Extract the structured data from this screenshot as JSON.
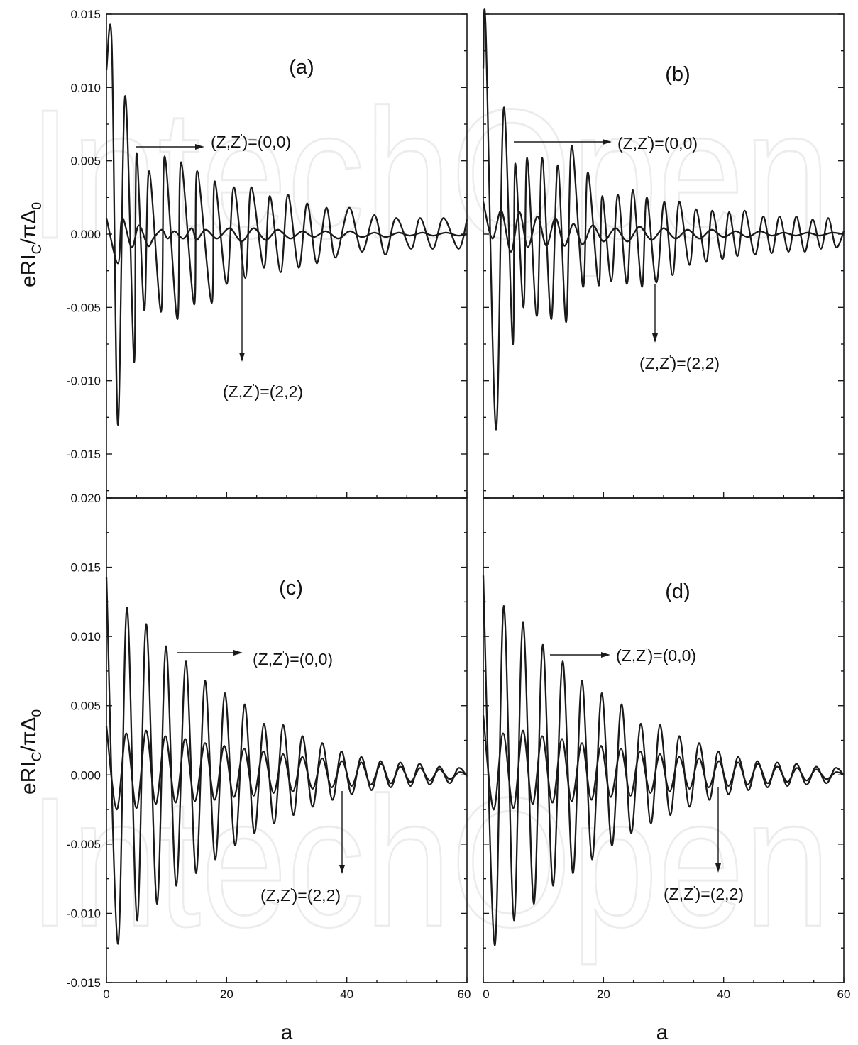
{
  "watermark": "IntechOpen",
  "colors": {
    "curve": "#1a1a1a",
    "watermark": "#ececec"
  },
  "shared": {
    "ylabel_main": "eRI",
    "ylabel_sub_c": "C",
    "ylabel_mid": "/πΔ",
    "ylabel_sub_0": "0",
    "xlabel": "a"
  },
  "chart_data": [
    {
      "type": "line",
      "panel": "(a)",
      "xlim": [
        0,
        60
      ],
      "ylim": [
        -0.018,
        0.015
      ],
      "ytick_labels": [
        "0.015",
        "0.010",
        "0.005",
        "0.000",
        "-0.005",
        "-0.010",
        "-0.015"
      ],
      "xtick_labels": [],
      "series": [
        {
          "name": "(Z,Z')=(0,0)",
          "x": [
            0,
            0.9,
            1.9,
            3.1,
            4.6,
            5.0,
            6.3,
            7.1,
            9.1,
            9.7,
            11.8,
            12.4,
            14.6,
            15.1,
            17.5,
            18.0,
            20.0,
            21.2,
            23.1,
            24.1,
            26.2,
            27.2,
            29.0,
            30.2,
            32.0,
            33.4,
            35.0,
            36.6,
            38.1,
            40.4,
            42.5,
            44.6,
            46.4,
            48.2,
            50.7,
            52.2,
            54.3,
            56.1,
            58.6,
            60
          ],
          "y": [
            0.0112,
            0.0128,
            -0.013,
            0.0094,
            -0.0087,
            0.0055,
            -0.0052,
            0.0043,
            -0.0053,
            0.0053,
            -0.0058,
            0.0049,
            -0.0048,
            0.0043,
            -0.0047,
            0.0036,
            -0.0034,
            0.0032,
            -0.003,
            0.0032,
            -0.0023,
            0.0026,
            -0.0026,
            0.0027,
            -0.0023,
            0.0021,
            -0.002,
            0.0018,
            -0.0016,
            0.0018,
            -0.0012,
            0.0013,
            -0.0014,
            0.0011,
            -0.001,
            0.0011,
            -0.001,
            0.0011,
            -0.001,
            0.001
          ]
        },
        {
          "name": "(Z,Z')=(2,2)",
          "x": [
            0,
            1.9,
            2.6,
            4.2,
            5.4,
            6.9,
            7.8,
            9.2,
            10.2,
            11.3,
            12.8,
            14.2,
            15.0,
            16.5,
            18.4,
            20.5,
            22.5,
            24.5,
            26.5,
            28.5,
            30.6,
            32.6,
            34.5,
            36.5,
            38.6,
            40.5,
            42.5,
            44.6,
            46.5,
            48.6,
            50.5,
            52.6,
            54.4,
            56.5,
            58.5,
            60
          ],
          "y": [
            0.0011,
            -0.002,
            0.0011,
            -0.0009,
            0.0006,
            -0.0008,
            -0.0003,
            0.0003,
            -0.0003,
            0.0002,
            -0.0003,
            0.0004,
            -0.0004,
            0.0003,
            -0.0003,
            0.0004,
            -0.0005,
            0.0004,
            -0.0004,
            0.0003,
            -0.0003,
            0.0002,
            -0.0002,
            0.0002,
            -0.0003,
            0.0002,
            -0.0002,
            0.0001,
            -0.0002,
            0.0001,
            -0.0001,
            0.0001,
            -0.0001,
            0.0001,
            -0.0001,
            0.0
          ]
        }
      ],
      "annotations": [
        {
          "text": "(Z,Z')=(0,0)"
        },
        {
          "text": "(Z,Z')=(2,2)"
        }
      ]
    },
    {
      "type": "line",
      "panel": "(b)",
      "xlim": [
        0,
        60
      ],
      "ylim": [
        -0.018,
        0.015
      ],
      "ytick_labels": [],
      "xtick_labels": [],
      "series": [
        {
          "name": "(Z,Z')=(0,0)",
          "x": [
            0,
            0.4,
            2.1,
            3.4,
            4.9,
            5.3,
            6.7,
            7.3,
            8.9,
            9.8,
            11.3,
            12.4,
            13.8,
            14.7,
            16.6,
            17.4,
            19.2,
            19.8,
            21.3,
            22.4,
            23.9,
            24.9,
            26.4,
            27.2,
            28.8,
            30.1,
            31.5,
            32.6,
            34.3,
            35.4,
            37.1,
            38.1,
            39.8,
            40.9,
            42.3,
            43.5,
            45.2,
            46.6,
            48.0,
            49.3,
            50.8,
            52.1,
            53.5,
            54.8,
            56.2,
            57.4,
            58.7,
            60
          ],
          "y": [
            0.0113,
            0.014,
            -0.0133,
            0.0086,
            -0.0075,
            0.0048,
            -0.005,
            0.0052,
            -0.0056,
            0.0052,
            -0.0058,
            0.0047,
            -0.006,
            0.006,
            -0.0036,
            0.0042,
            -0.0035,
            0.0026,
            -0.0032,
            0.0027,
            -0.0034,
            0.003,
            -0.0036,
            0.0025,
            -0.0033,
            0.0022,
            -0.0028,
            0.0022,
            -0.0021,
            0.0017,
            -0.0019,
            0.0016,
            -0.0017,
            0.0015,
            -0.0015,
            0.0016,
            -0.0014,
            0.0012,
            -0.0013,
            0.0012,
            -0.0012,
            0.0012,
            -0.0012,
            0.001,
            -0.001,
            0.0011,
            -0.0009,
            0.0002
          ]
        },
        {
          "name": "(Z,Z')=(2,2)",
          "x": [
            0,
            1.5,
            3.0,
            4.6,
            6.0,
            7.4,
            9.0,
            10.5,
            12.0,
            13.5,
            15.0,
            16.5,
            18.2,
            20.0,
            22.0,
            24.0,
            26.0,
            28.0,
            30.0,
            32.0,
            34.0,
            36.0,
            38.0,
            40.0,
            42.0,
            44.0,
            46.0,
            48.0,
            50.0,
            52.0,
            54.0,
            56.0,
            58.0,
            60
          ],
          "y": [
            0.0022,
            -0.0003,
            0.0016,
            -0.0012,
            0.0015,
            -0.0009,
            0.0012,
            -0.0008,
            0.0011,
            -0.0008,
            0.0007,
            -0.0007,
            0.0006,
            -0.0005,
            0.0004,
            -0.0005,
            0.0005,
            -0.0004,
            0.0004,
            -0.0003,
            0.0003,
            -0.0003,
            0.0003,
            -0.0002,
            0.0002,
            -0.0002,
            0.0002,
            -0.0001,
            0.0001,
            -0.0001,
            0.0001,
            -0.0001,
            0.0001,
            0.0
          ]
        }
      ],
      "annotations": [
        {
          "text": "(Z,Z')=(0,0)"
        },
        {
          "text": "(Z,Z')=(2,2)"
        }
      ]
    },
    {
      "type": "line",
      "panel": "(c)",
      "xlim": [
        0,
        60
      ],
      "ylim": [
        -0.015,
        0.02
      ],
      "ytick_labels": [
        "0.020",
        "0.015",
        "0.010",
        "0.005",
        "0.000",
        "-0.005",
        "-0.010",
        "-0.015"
      ],
      "xtick_labels": [
        "0",
        "20",
        "40",
        "60"
      ],
      "series": [
        {
          "name": "(Z,Z')=(0,0)",
          "x": [
            0,
            1.9,
            3.4,
            5.1,
            6.6,
            8.4,
            9.9,
            11.6,
            13.2,
            14.9,
            16.4,
            18.1,
            19.7,
            21.4,
            23.0,
            24.6,
            26.2,
            27.9,
            29.4,
            31.1,
            32.6,
            34.3,
            35.9,
            37.6,
            39.1,
            40.8,
            42.4,
            44.1,
            45.6,
            47.3,
            48.9,
            50.6,
            52.1,
            53.8,
            55.4,
            57.1,
            58.6,
            60
          ],
          "y": [
            0.0143,
            -0.0122,
            0.0121,
            -0.0105,
            0.0109,
            -0.0093,
            0.0093,
            -0.008,
            0.0082,
            -0.0071,
            0.0068,
            -0.0061,
            0.0059,
            -0.0051,
            0.0051,
            -0.0042,
            0.0037,
            -0.0035,
            0.0036,
            -0.0029,
            0.0028,
            -0.0023,
            0.0023,
            -0.0018,
            0.0017,
            -0.0014,
            0.0013,
            -0.0011,
            0.001,
            -0.0009,
            0.0009,
            -0.0008,
            0.0008,
            -0.0007,
            0.0006,
            -0.0006,
            0.0005,
            -0.0001
          ]
        },
        {
          "name": "(Z,Z')=(2,2)",
          "x": [
            0,
            1.7,
            3.3,
            5.0,
            6.6,
            8.2,
            9.8,
            11.5,
            13.1,
            14.7,
            16.4,
            18.0,
            19.6,
            21.2,
            22.9,
            24.5,
            26.1,
            27.8,
            29.4,
            31.0,
            32.6,
            34.3,
            35.9,
            37.5,
            39.2,
            40.8,
            42.4,
            44.0,
            45.7,
            47.3,
            48.9,
            50.6,
            52.2,
            53.8,
            55.4,
            57.1,
            58.7,
            60
          ],
          "y": [
            0.0035,
            -0.0025,
            0.003,
            -0.0024,
            0.0032,
            -0.0021,
            0.0028,
            -0.002,
            0.0026,
            -0.0019,
            0.0023,
            -0.0018,
            0.0021,
            -0.0016,
            0.0019,
            -0.0015,
            0.0017,
            -0.0013,
            0.0015,
            -0.0012,
            0.0013,
            -0.001,
            0.0012,
            -0.0009,
            0.001,
            -0.0008,
            0.0009,
            -0.0007,
            0.0008,
            -0.0006,
            0.0006,
            -0.0005,
            0.0005,
            -0.0004,
            0.0004,
            -0.0003,
            0.0002,
            0.0
          ]
        }
      ],
      "annotations": [
        {
          "text": "(Z,Z')=(0,0)"
        },
        {
          "text": "(Z,Z')=(2,2)"
        }
      ]
    },
    {
      "type": "line",
      "panel": "(d)",
      "xlim": [
        0,
        60
      ],
      "ylim": [
        -0.015,
        0.02
      ],
      "ytick_labels": [],
      "xtick_labels": [
        "0",
        "20",
        "40",
        "60"
      ],
      "series": [
        {
          "name": "(Z,Z')=(0,0)",
          "x": [
            0,
            1.9,
            3.4,
            5.1,
            6.6,
            8.4,
            9.9,
            11.6,
            13.2,
            14.9,
            16.4,
            18.1,
            19.7,
            21.4,
            23.0,
            24.6,
            26.2,
            27.9,
            29.4,
            31.1,
            32.6,
            34.3,
            35.9,
            37.6,
            39.1,
            40.8,
            42.4,
            44.1,
            45.6,
            47.3,
            48.9,
            50.6,
            52.1,
            53.8,
            55.4,
            57.1,
            58.6,
            60
          ],
          "y": [
            0.0144,
            -0.0123,
            0.0122,
            -0.0105,
            0.011,
            -0.0093,
            0.0094,
            -0.008,
            0.0082,
            -0.0071,
            0.0068,
            -0.0061,
            0.0059,
            -0.0051,
            0.0051,
            -0.0042,
            0.0037,
            -0.0035,
            0.0036,
            -0.0029,
            0.0028,
            -0.0023,
            0.0023,
            -0.0018,
            0.0017,
            -0.0014,
            0.0013,
            -0.0011,
            0.001,
            -0.0009,
            0.0009,
            -0.0008,
            0.0008,
            -0.0007,
            0.0006,
            -0.0006,
            0.0005,
            0.0
          ]
        },
        {
          "name": "(Z,Z')=(2,2)",
          "x": [
            0,
            1.7,
            3.3,
            5.0,
            6.6,
            8.2,
            9.8,
            11.5,
            13.1,
            14.7,
            16.4,
            18.0,
            19.6,
            21.2,
            22.9,
            24.5,
            26.1,
            27.8,
            29.4,
            31.0,
            32.6,
            34.3,
            35.9,
            37.5,
            39.2,
            40.8,
            42.4,
            44.0,
            45.7,
            47.3,
            48.9,
            50.6,
            52.2,
            53.8,
            55.4,
            57.1,
            58.7,
            60
          ],
          "y": [
            0.0043,
            -0.0025,
            0.003,
            -0.0024,
            0.0032,
            -0.0021,
            0.0028,
            -0.002,
            0.0026,
            -0.0019,
            0.0023,
            -0.0018,
            0.0021,
            -0.0016,
            0.0019,
            -0.0015,
            0.0017,
            -0.0013,
            0.0015,
            -0.0012,
            0.0013,
            -0.001,
            0.0012,
            -0.0009,
            0.001,
            -0.0008,
            0.0009,
            -0.0007,
            0.0008,
            -0.0006,
            0.0006,
            -0.0005,
            0.0005,
            -0.0004,
            0.0004,
            -0.0003,
            0.0002,
            0.0
          ]
        }
      ],
      "annotations": [
        {
          "text": "(Z,Z')=(0,0)"
        },
        {
          "text": "(Z,Z')=(2,2)"
        }
      ]
    }
  ]
}
